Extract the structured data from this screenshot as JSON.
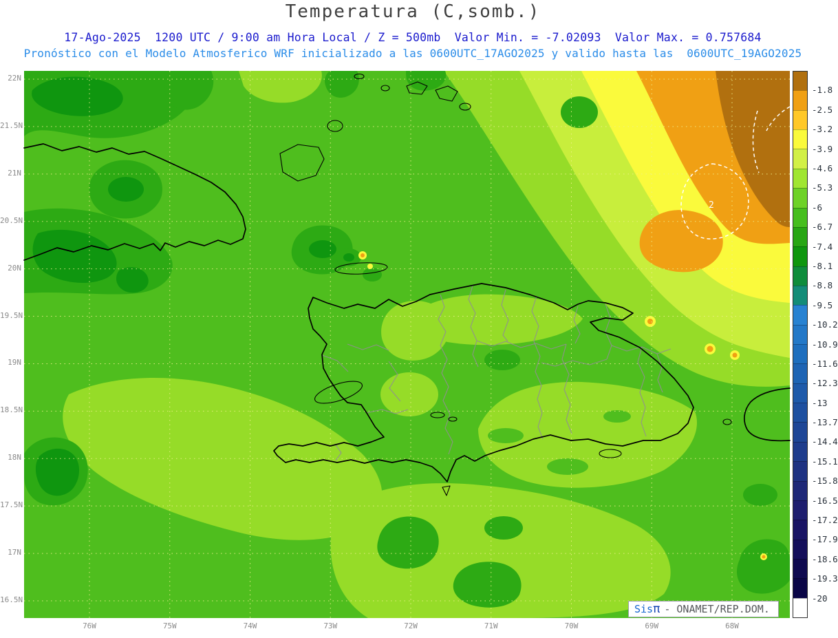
{
  "header": {
    "title": "Temperatura (C,somb.)",
    "subtitle1": "17-Ago-2025  1200 UTC / 9:00 am Hora Local / Z = 500mb  Valor Min. = -7.02093  Valor Max. = 0.757684",
    "subtitle2": "Pronóstico con el Modelo Atmosferico WRF inicializado a las 0600UTC_17AGO2025 y valido hasta las  0600UTC_19AGO2025"
  },
  "axes": {
    "lat": [
      "22N",
      "21.5N",
      "21N",
      "20.5N",
      "20N",
      "19.5N",
      "19N",
      "18.5N",
      "18N",
      "17.5N",
      "17N",
      "16.5N"
    ],
    "lon": [
      "76W",
      "75W",
      "74W",
      "73W",
      "72W",
      "71W",
      "70W",
      "69W",
      "68W"
    ]
  },
  "colorbar": {
    "labels": [
      "-1.8",
      "-2.5",
      "-3.2",
      "-3.9",
      "-4.6",
      "-5.3",
      "-6",
      "-6.7",
      "-7.4",
      "-8.1",
      "-8.8",
      "-9.5",
      "-10.2",
      "-10.9",
      "-11.6",
      "-12.3",
      "-13",
      "-13.7",
      "-14.4",
      "-15.1",
      "-15.8",
      "-16.5",
      "-17.2",
      "-17.9",
      "-18.6",
      "-19.3",
      "-20"
    ],
    "colors": [
      "#b1700f",
      "#f0a014",
      "#ffc828",
      "#fafa3c",
      "#d2f046",
      "#a0e632",
      "#6ed228",
      "#46be1e",
      "#28a614",
      "#0f960f",
      "#0f8c3c",
      "#148c78",
      "#2882d2",
      "#2378c8",
      "#1e6ebe",
      "#1e64b4",
      "#1e5aaa",
      "#1e50a0",
      "#1e4696",
      "#1e3c8c",
      "#1e3282",
      "#1e2878",
      "#1e1e6e",
      "#191464",
      "#140f5a",
      "#0f0a50",
      "#0a0546",
      "#ffffff"
    ]
  },
  "map": {
    "contour_label": "2",
    "colors": {
      "bg": "#4fbe1e",
      "light": "#96dc28",
      "pale": "#c8ee3c",
      "dark": "#2daa14",
      "darkest": "#0f960f",
      "yellow": "#fafa3c",
      "orange": "#f0a014",
      "brown": "#b1700f",
      "coast": "#000000",
      "border": "#8f8f8f",
      "graticule": "#f0f08c",
      "dash": "#ffffff"
    }
  },
  "credit": {
    "brand": "Sis",
    "pi": "π",
    "suffix": "- ONAMET/REP.DOM."
  },
  "chart_data": {
    "type": "heatmap",
    "subtype": "filled-contour-weather-map",
    "variable": "Temperatura (C,somb.) @ Z = 500mb",
    "model": "WRF",
    "initialized": "0600UTC_17AGO2025",
    "valid_until": "0600UTC_19AGO2025",
    "valid_time": "17-Ago-2025 1200 UTC / 9:00 am Hora Local",
    "value_min": -7.02093,
    "value_max": 0.757684,
    "contour_levels": [
      -20,
      -19.3,
      -18.6,
      -17.9,
      -17.2,
      -16.5,
      -15.8,
      -15.1,
      -14.4,
      -13.7,
      -13,
      -12.3,
      -11.6,
      -10.9,
      -10.2,
      -9.5,
      -8.8,
      -8.1,
      -7.4,
      -6.7,
      -6,
      -5.3,
      -4.6,
      -3.9,
      -3.2,
      -2.5,
      -1.8
    ],
    "lon_extent_deg_west": [
      76.8,
      67.3
    ],
    "lat_extent_deg_north": [
      16.3,
      22.1
    ],
    "legend_position": "right",
    "grid": "dotted graticule every 0.5 deg lat / 1 deg lon"
  }
}
